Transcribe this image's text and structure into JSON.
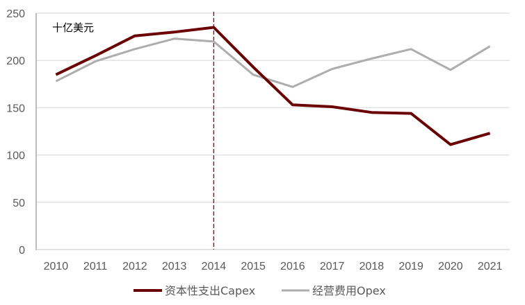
{
  "chart_data": {
    "type": "line",
    "title": "",
    "unit_label": "十亿美元",
    "xlabel": "",
    "ylabel": "",
    "categories": [
      "2010",
      "2011",
      "2012",
      "2013",
      "2014",
      "2015",
      "2016",
      "2017",
      "2018",
      "2019",
      "2020",
      "2021"
    ],
    "series": [
      {
        "name": "资本性支出Capex",
        "color": "#6B0000",
        "width": 4,
        "values": [
          185,
          205,
          226,
          230,
          235,
          193,
          153,
          151,
          145,
          144,
          111,
          123
        ]
      },
      {
        "name": "经营费用Opex",
        "color": "#ADADAD",
        "width": 3,
        "values": [
          178,
          199,
          212,
          223,
          220,
          185,
          172,
          191,
          202,
          212,
          190,
          215
        ]
      }
    ],
    "ylim": [
      0,
      250
    ],
    "yticks": [
      0,
      50,
      100,
      150,
      200,
      250
    ],
    "grid": "horizontal",
    "legend_position": "bottom",
    "annotations": [
      {
        "type": "vertical-dashed-line",
        "x": "2014",
        "color": "#6B0000"
      }
    ]
  }
}
